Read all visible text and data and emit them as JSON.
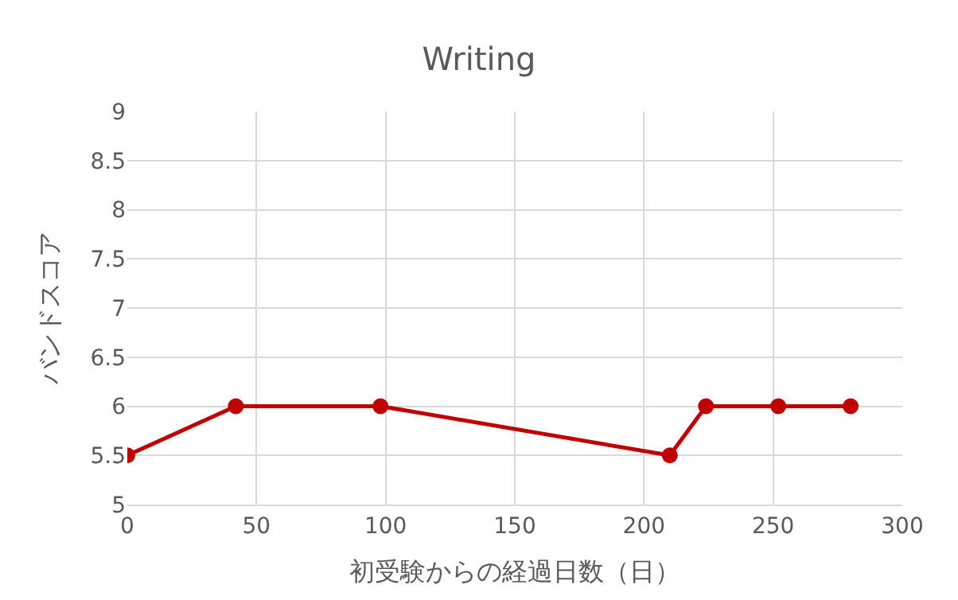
{
  "chart_data": {
    "type": "line",
    "title": "Writing",
    "xlabel": "初受験からの経過日数（日）",
    "ylabel": "バンドスコア",
    "x": [
      0,
      42,
      98,
      210,
      224,
      252,
      280
    ],
    "series": [
      {
        "color": "#c00000",
        "values": [
          5.5,
          6,
          6,
          5.5,
          6,
          6,
          6
        ]
      }
    ],
    "xlim": [
      0,
      300
    ],
    "xticks": [
      0,
      50,
      100,
      150,
      200,
      250,
      300
    ],
    "ylim": [
      5,
      9
    ],
    "yticks": [
      5,
      5.5,
      6,
      6.5,
      7,
      7.5,
      8,
      8.5,
      9
    ],
    "grid": true,
    "marker": "circle",
    "line_style": "solid",
    "legend": false
  }
}
